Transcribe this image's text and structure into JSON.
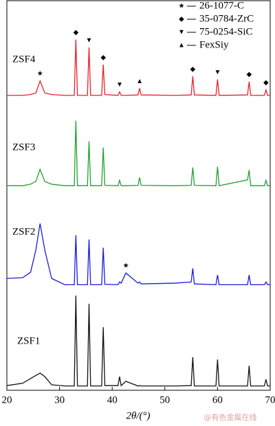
{
  "chart_data": {
    "type": "line",
    "xlabel": "2θ/(°)",
    "xlim": [
      20,
      70
    ],
    "xticks": [
      20,
      30,
      40,
      50,
      60,
      70
    ],
    "ylim": [
      0,
      100
    ],
    "x": [
      20,
      23,
      24.5,
      25.5,
      26.3,
      27.2,
      28.5,
      31,
      32.8,
      33.1,
      33.4,
      35.3,
      35.6,
      35.9,
      38.0,
      38.3,
      38.6,
      41.1,
      41.4,
      41.7,
      42.6,
      44.9,
      45.2,
      45.5,
      52,
      55.0,
      55.3,
      55.6,
      59.7,
      60.0,
      60.3,
      65.7,
      66.0,
      66.3,
      68.9,
      69.2,
      69.5,
      70
    ],
    "series": [
      {
        "name": "ZSF4",
        "color": "#e8202a",
        "values": [
          75.7,
          75.7,
          75.9,
          76.3,
          79.4,
          76.3,
          75.9,
          75.7,
          75.7,
          90.0,
          75.7,
          75.7,
          88.0,
          75.7,
          75.7,
          83.6,
          75.9,
          75.7,
          76.6,
          75.7,
          75.7,
          75.8,
          77.5,
          75.8,
          75.7,
          75.8,
          80.6,
          75.8,
          75.7,
          79.8,
          75.7,
          75.8,
          79.2,
          75.7,
          75.7,
          77.1,
          75.7,
          75.7
        ]
      },
      {
        "name": "ZSF3",
        "color": "#1fa22e",
        "values": [
          52.5,
          52.5,
          52.9,
          53.6,
          56.7,
          53.6,
          52.9,
          52.5,
          52.5,
          69.2,
          52.5,
          52.5,
          63.9,
          52.5,
          52.5,
          62.3,
          52.6,
          52.5,
          53.9,
          52.5,
          52.5,
          52.6,
          54.6,
          52.6,
          52.5,
          52.6,
          57.2,
          52.6,
          52.5,
          57.4,
          52.5,
          54.0,
          56.5,
          52.5,
          52.5,
          53.9,
          52.5,
          52.5
        ]
      },
      {
        "name": "ZSF2",
        "color": "#1a1adb",
        "values": [
          28.7,
          28.9,
          30.3,
          36.0,
          42.8,
          36.0,
          28.7,
          27.1,
          27.1,
          39.8,
          27.1,
          27.1,
          38.7,
          27.1,
          27.1,
          36.6,
          27.2,
          27.1,
          27.8,
          27.5,
          30.1,
          27.5,
          27.8,
          27.3,
          27.5,
          27.8,
          31.3,
          27.3,
          27.1,
          29.6,
          27.1,
          27.1,
          29.6,
          27.1,
          27.1,
          27.8,
          27.1,
          27.1
        ]
      },
      {
        "name": "ZSF1",
        "color": "#111111",
        "values": [
          1.2,
          1.8,
          3.0,
          3.8,
          4.4,
          3.5,
          1.4,
          1.1,
          1.1,
          24.3,
          1.1,
          1.1,
          22.2,
          1.1,
          1.1,
          16.2,
          1.2,
          1.2,
          3.5,
          1.2,
          2.3,
          1.1,
          1.2,
          1.1,
          1.1,
          1.2,
          8.5,
          1.1,
          1.1,
          7.9,
          1.1,
          1.1,
          6.3,
          1.1,
          1.1,
          2.8,
          1.1,
          1.1
        ]
      }
    ],
    "legend": [
      {
        "symbol": "★",
        "label": "26-1077-C"
      },
      {
        "symbol": "◆",
        "label": "35-0784-ZrC"
      },
      {
        "symbol": "▼",
        "label": "75-0254-SiC"
      },
      {
        "symbol": "▲",
        "label": "FexSiy"
      }
    ],
    "phase_markers": [
      {
        "series": 0,
        "x": 26.3,
        "symbol": "★"
      },
      {
        "series": 0,
        "x": 33.1,
        "symbol": "◆"
      },
      {
        "series": 0,
        "x": 35.6,
        "symbol": "▼"
      },
      {
        "series": 0,
        "x": 38.3,
        "symbol": "◆"
      },
      {
        "series": 0,
        "x": 41.4,
        "symbol": "▼"
      },
      {
        "series": 0,
        "x": 45.2,
        "symbol": "▲"
      },
      {
        "series": 0,
        "x": 55.3,
        "symbol": "◆"
      },
      {
        "series": 0,
        "x": 60.0,
        "symbol": "▼"
      },
      {
        "series": 0,
        "x": 66.0,
        "symbol": "◆"
      },
      {
        "series": 0,
        "x": 69.2,
        "symbol": "◆"
      },
      {
        "series": 2,
        "x": 42.6,
        "symbol": "★"
      }
    ],
    "watermark": "@有色金属在线"
  }
}
